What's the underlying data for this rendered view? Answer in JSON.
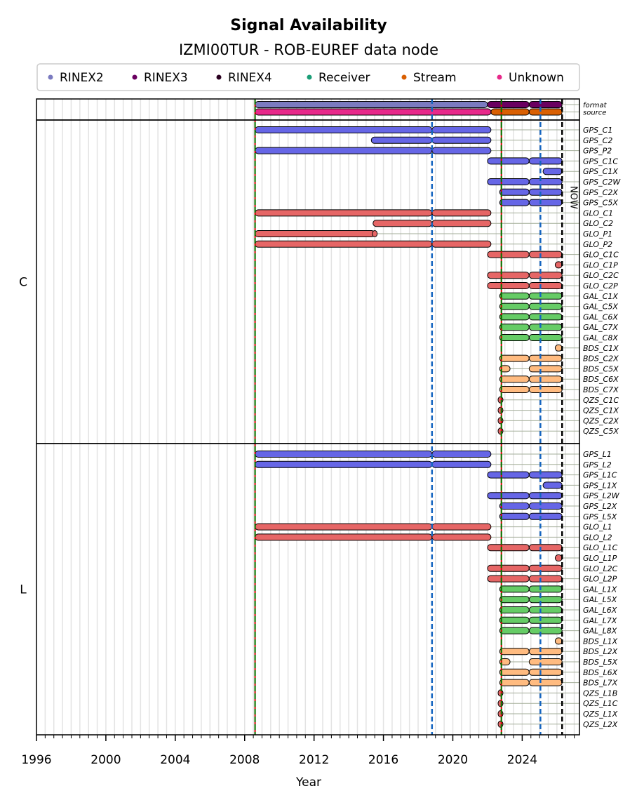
{
  "chart_data": {
    "type": "timeline",
    "title": "Signal Availability",
    "subtitle": "IZMI00TUR - ROB-EUREF data node",
    "xlabel": "Year",
    "ylabel": "",
    "xlim": [
      1996,
      2027.3
    ],
    "x_ticks": [
      1996,
      2000,
      2004,
      2008,
      2012,
      2016,
      2020,
      2024
    ],
    "x_tick_labels": [
      "1996",
      "2000",
      "2004",
      "2008",
      "2012",
      "2016",
      "2020",
      "2024"
    ],
    "minor_tick_step": 0.5,
    "grid": true,
    "legend_placement": "top-center",
    "legend": [
      {
        "label": "RINEX2",
        "color": "#7b7bc0"
      },
      {
        "label": "RINEX3",
        "color": "#6a0060"
      },
      {
        "label": "RINEX4",
        "color": "#2a0020"
      },
      {
        "label": "Receiver",
        "color": "#1b9e77"
      },
      {
        "label": "Stream",
        "color": "#d95f02"
      },
      {
        "label": "Unknown",
        "color": "#e7298a"
      }
    ],
    "vertical_lines": [
      {
        "name": "receiver-change",
        "x": 2008.6,
        "style": "red-green-dashed"
      },
      {
        "name": "antenna-change",
        "x": 2018.8,
        "style": "blue-dashed",
        "color": "#1565c0"
      },
      {
        "name": "receiver-change",
        "x": 2022.8,
        "style": "red-green-dashed"
      },
      {
        "name": "antenna-change",
        "x": 2025.05,
        "style": "blue-dashed",
        "color": "#1565c0"
      },
      {
        "name": "now",
        "x": 2026.3,
        "style": "black-dashed",
        "label": "NOW"
      }
    ],
    "constellation_colors": {
      "GPS": "#6666e6",
      "GLO": "#e66666",
      "GAL": "#66cc66",
      "BDS": "#ffbb80",
      "QZS": "#e66666"
    },
    "meta_rows": [
      {
        "label": "format",
        "segments": [
          {
            "start": 2008.6,
            "end": 2022.0,
            "category": "RINEX2",
            "color": "#7b7bc0"
          },
          {
            "start": 2022.0,
            "end": 2024.4,
            "category": "RINEX3",
            "color": "#6a0060"
          },
          {
            "start": 2024.4,
            "end": 2026.3,
            "category": "RINEX3",
            "color": "#6a0060"
          }
        ]
      },
      {
        "label": "source",
        "segments": [
          {
            "start": 2008.6,
            "end": 2022.2,
            "category": "Unknown",
            "color": "#e7298a"
          },
          {
            "start": 2022.2,
            "end": 2024.4,
            "category": "Stream",
            "color": "#d95f02"
          },
          {
            "start": 2024.4,
            "end": 2026.3,
            "category": "Stream",
            "color": "#d95f02"
          }
        ]
      }
    ],
    "groups": [
      {
        "label": "C",
        "rows": [
          {
            "label": "GPS_C1",
            "sys": "GPS",
            "segments": [
              [
                2008.6,
                2018.8
              ],
              [
                2018.8,
                2022.2
              ]
            ]
          },
          {
            "label": "GPS_C2",
            "sys": "GPS",
            "segments": [
              [
                2015.3,
                2018.8
              ],
              [
                2018.8,
                2022.2
              ]
            ]
          },
          {
            "label": "GPS_P2",
            "sys": "GPS",
            "segments": [
              [
                2008.6,
                2018.8
              ],
              [
                2018.8,
                2022.2
              ]
            ]
          },
          {
            "label": "GPS_C1C",
            "sys": "GPS",
            "segments": [
              [
                2022.0,
                2024.4
              ],
              [
                2024.4,
                2026.3
              ]
            ]
          },
          {
            "label": "GPS_C1X",
            "sys": "GPS",
            "segments": [
              [
                2025.2,
                2026.3
              ]
            ]
          },
          {
            "label": "GPS_C2W",
            "sys": "GPS",
            "segments": [
              [
                2022.0,
                2024.4
              ],
              [
                2024.4,
                2026.3
              ]
            ]
          },
          {
            "label": "GPS_C2X",
            "sys": "GPS",
            "segments": [
              [
                2022.7,
                2024.4
              ],
              [
                2024.4,
                2026.3
              ]
            ]
          },
          {
            "label": "GPS_C5X",
            "sys": "GPS",
            "segments": [
              [
                2022.7,
                2024.4
              ],
              [
                2024.4,
                2026.3
              ]
            ]
          },
          {
            "label": "GLO_C1",
            "sys": "GLO",
            "segments": [
              [
                2008.6,
                2018.8
              ],
              [
                2018.8,
                2022.2
              ]
            ]
          },
          {
            "label": "GLO_C2",
            "sys": "GLO",
            "segments": [
              [
                2015.4,
                2018.8
              ],
              [
                2018.8,
                2022.2
              ]
            ]
          },
          {
            "label": "GLO_P1",
            "sys": "GLO",
            "segments": [
              [
                2008.6,
                2015.5
              ],
              [
                2015.5,
                2015.7
              ]
            ]
          },
          {
            "label": "GLO_P2",
            "sys": "GLO",
            "segments": [
              [
                2008.6,
                2018.8
              ],
              [
                2018.8,
                2022.2
              ]
            ]
          },
          {
            "label": "GLO_C1C",
            "sys": "GLO",
            "segments": [
              [
                2022.0,
                2024.4
              ],
              [
                2024.4,
                2026.3
              ]
            ]
          },
          {
            "label": "GLO_C1P",
            "sys": "GLO",
            "segments": [
              [
                2025.9,
                2026.3
              ]
            ]
          },
          {
            "label": "GLO_C2C",
            "sys": "GLO",
            "segments": [
              [
                2022.0,
                2024.4
              ],
              [
                2024.4,
                2026.3
              ]
            ]
          },
          {
            "label": "GLO_C2P",
            "sys": "GLO",
            "segments": [
              [
                2022.0,
                2024.4
              ],
              [
                2024.4,
                2026.3
              ]
            ]
          },
          {
            "label": "GAL_C1X",
            "sys": "GAL",
            "segments": [
              [
                2022.7,
                2024.4
              ],
              [
                2024.4,
                2026.3
              ]
            ]
          },
          {
            "label": "GAL_C5X",
            "sys": "GAL",
            "segments": [
              [
                2022.7,
                2024.4
              ],
              [
                2024.4,
                2026.3
              ]
            ]
          },
          {
            "label": "GAL_C6X",
            "sys": "GAL",
            "segments": [
              [
                2022.7,
                2024.4
              ],
              [
                2024.4,
                2026.3
              ]
            ]
          },
          {
            "label": "GAL_C7X",
            "sys": "GAL",
            "segments": [
              [
                2022.7,
                2024.4
              ],
              [
                2024.4,
                2026.3
              ]
            ]
          },
          {
            "label": "GAL_C8X",
            "sys": "GAL",
            "segments": [
              [
                2022.7,
                2024.4
              ],
              [
                2024.4,
                2026.3
              ]
            ]
          },
          {
            "label": "BDS_C1X",
            "sys": "BDS",
            "segments": [
              [
                2025.9,
                2026.3
              ]
            ]
          },
          {
            "label": "BDS_C2X",
            "sys": "BDS",
            "segments": [
              [
                2022.7,
                2024.4
              ],
              [
                2024.4,
                2026.3
              ]
            ]
          },
          {
            "label": "BDS_C5X",
            "sys": "BDS",
            "segments": [
              [
                2022.7,
                2023.3
              ],
              [
                2024.4,
                2026.3
              ]
            ]
          },
          {
            "label": "BDS_C6X",
            "sys": "BDS",
            "segments": [
              [
                2022.7,
                2024.4
              ],
              [
                2024.4,
                2026.3
              ]
            ]
          },
          {
            "label": "BDS_C7X",
            "sys": "BDS",
            "segments": [
              [
                2022.7,
                2024.4
              ],
              [
                2024.4,
                2026.3
              ]
            ]
          },
          {
            "label": "QZS_C1C",
            "sys": "QZS",
            "segments": [
              [
                2022.75,
                2022.8
              ]
            ]
          },
          {
            "label": "QZS_C1X",
            "sys": "QZS",
            "segments": [
              [
                2022.75,
                2022.8
              ]
            ]
          },
          {
            "label": "QZS_C2X",
            "sys": "QZS",
            "segments": [
              [
                2022.75,
                2022.8
              ]
            ]
          },
          {
            "label": "QZS_C5X",
            "sys": "QZS",
            "segments": [
              [
                2022.75,
                2022.8
              ]
            ]
          }
        ]
      },
      {
        "label": "L",
        "rows": [
          {
            "label": "GPS_L1",
            "sys": "GPS",
            "segments": [
              [
                2008.6,
                2018.8
              ],
              [
                2018.8,
                2022.2
              ]
            ]
          },
          {
            "label": "GPS_L2",
            "sys": "GPS",
            "segments": [
              [
                2008.6,
                2018.8
              ],
              [
                2018.8,
                2022.2
              ]
            ]
          },
          {
            "label": "GPS_L1C",
            "sys": "GPS",
            "segments": [
              [
                2022.0,
                2024.4
              ],
              [
                2024.4,
                2026.3
              ]
            ]
          },
          {
            "label": "GPS_L1X",
            "sys": "GPS",
            "segments": [
              [
                2025.2,
                2026.3
              ]
            ]
          },
          {
            "label": "GPS_L2W",
            "sys": "GPS",
            "segments": [
              [
                2022.0,
                2024.4
              ],
              [
                2024.4,
                2026.3
              ]
            ]
          },
          {
            "label": "GPS_L2X",
            "sys": "GPS",
            "segments": [
              [
                2022.7,
                2024.4
              ],
              [
                2024.4,
                2026.3
              ]
            ]
          },
          {
            "label": "GPS_L5X",
            "sys": "GPS",
            "segments": [
              [
                2022.7,
                2024.4
              ],
              [
                2024.4,
                2026.3
              ]
            ]
          },
          {
            "label": "GLO_L1",
            "sys": "GLO",
            "segments": [
              [
                2008.6,
                2018.8
              ],
              [
                2018.8,
                2022.2
              ]
            ]
          },
          {
            "label": "GLO_L2",
            "sys": "GLO",
            "segments": [
              [
                2008.6,
                2018.8
              ],
              [
                2018.8,
                2022.2
              ]
            ]
          },
          {
            "label": "GLO_L1C",
            "sys": "GLO",
            "segments": [
              [
                2022.0,
                2024.4
              ],
              [
                2024.4,
                2026.3
              ]
            ]
          },
          {
            "label": "GLO_L1P",
            "sys": "GLO",
            "segments": [
              [
                2025.9,
                2026.3
              ]
            ]
          },
          {
            "label": "GLO_L2C",
            "sys": "GLO",
            "segments": [
              [
                2022.0,
                2024.4
              ],
              [
                2024.4,
                2026.3
              ]
            ]
          },
          {
            "label": "GLO_L2P",
            "sys": "GLO",
            "segments": [
              [
                2022.0,
                2024.4
              ],
              [
                2024.4,
                2026.3
              ]
            ]
          },
          {
            "label": "GAL_L1X",
            "sys": "GAL",
            "segments": [
              [
                2022.7,
                2024.4
              ],
              [
                2024.4,
                2026.3
              ]
            ]
          },
          {
            "label": "GAL_L5X",
            "sys": "GAL",
            "segments": [
              [
                2022.7,
                2024.4
              ],
              [
                2024.4,
                2026.3
              ]
            ]
          },
          {
            "label": "GAL_L6X",
            "sys": "GAL",
            "segments": [
              [
                2022.7,
                2024.4
              ],
              [
                2024.4,
                2026.3
              ]
            ]
          },
          {
            "label": "GAL_L7X",
            "sys": "GAL",
            "segments": [
              [
                2022.7,
                2024.4
              ],
              [
                2024.4,
                2026.3
              ]
            ]
          },
          {
            "label": "GAL_L8X",
            "sys": "GAL",
            "segments": [
              [
                2022.7,
                2024.4
              ],
              [
                2024.4,
                2026.3
              ]
            ]
          },
          {
            "label": "BDS_L1X",
            "sys": "BDS",
            "segments": [
              [
                2025.9,
                2026.3
              ]
            ]
          },
          {
            "label": "BDS_L2X",
            "sys": "BDS",
            "segments": [
              [
                2022.7,
                2024.4
              ],
              [
                2024.4,
                2026.3
              ]
            ]
          },
          {
            "label": "BDS_L5X",
            "sys": "BDS",
            "segments": [
              [
                2022.7,
                2023.3
              ],
              [
                2024.4,
                2026.3
              ]
            ]
          },
          {
            "label": "BDS_L6X",
            "sys": "BDS",
            "segments": [
              [
                2022.7,
                2024.4
              ],
              [
                2024.4,
                2026.3
              ]
            ]
          },
          {
            "label": "BDS_L7X",
            "sys": "BDS",
            "segments": [
              [
                2022.7,
                2024.4
              ],
              [
                2024.4,
                2026.3
              ]
            ]
          },
          {
            "label": "QZS_L1B",
            "sys": "QZS",
            "segments": [
              [
                2022.75,
                2022.8
              ]
            ]
          },
          {
            "label": "QZS_L1C",
            "sys": "QZS",
            "segments": [
              [
                2022.75,
                2022.8
              ]
            ]
          },
          {
            "label": "QZS_L1X",
            "sys": "QZS",
            "segments": [
              [
                2022.75,
                2022.8
              ]
            ]
          },
          {
            "label": "QZS_L2X",
            "sys": "QZS",
            "segments": [
              [
                2022.75,
                2022.8
              ]
            ]
          }
        ]
      }
    ]
  }
}
